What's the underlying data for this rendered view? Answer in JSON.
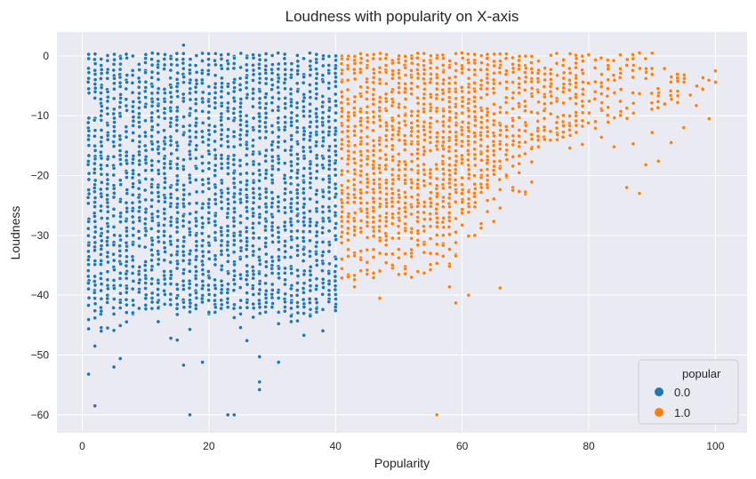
{
  "chart_data": {
    "type": "scatter",
    "title": "Loudness with popularity on X-axis",
    "xlabel": "Popularity",
    "ylabel": "Loudness",
    "xlim": [
      -4,
      105
    ],
    "ylim": [
      -63,
      4
    ],
    "xticks": [
      0,
      20,
      40,
      60,
      80,
      100
    ],
    "yticks": [
      0,
      -10,
      -20,
      -30,
      -40,
      -50,
      -60
    ],
    "grid": true,
    "legend": {
      "title": "popular",
      "placement": "lower-right",
      "entries": [
        "0.0",
        "1.0"
      ]
    },
    "colors": {
      "background": "#eaeaf2",
      "grid": "#ffffff",
      "series_0": "#1f77b4",
      "series_1": "#ff7f0e"
    },
    "series": [
      {
        "name": "0.0",
        "x_range": [
          1,
          40
        ],
        "y_top": 0.5,
        "dense_floor": -42,
        "outliers": [
          [
            1,
            -53.2
          ],
          [
            2,
            -58.5
          ],
          [
            2,
            -48.5
          ],
          [
            3,
            -46
          ],
          [
            5,
            -52
          ],
          [
            6,
            -50.6
          ],
          [
            14,
            -47.2
          ],
          [
            15,
            -47.5
          ],
          [
            16,
            -51.7
          ],
          [
            17,
            -60
          ],
          [
            19,
            -51.2
          ],
          [
            23,
            -60
          ],
          [
            24,
            -60
          ],
          [
            26,
            -47.6
          ],
          [
            28,
            -54.5
          ],
          [
            28,
            -55.8
          ],
          [
            28,
            -50.3
          ],
          [
            31,
            -51.2
          ],
          [
            34,
            -44.3
          ],
          [
            35,
            -46.7
          ],
          [
            16,
            1.8
          ],
          [
            40,
            -42
          ]
        ]
      },
      {
        "name": "1.0",
        "x_range": [
          41,
          100
        ],
        "y_top": 0.5,
        "outliers": [
          [
            56,
            -60
          ],
          [
            59,
            -41.3
          ],
          [
            61,
            -40
          ],
          [
            58,
            -38.6
          ],
          [
            66,
            -38.8
          ],
          [
            43,
            -38.6
          ],
          [
            47,
            -40.5
          ],
          [
            52,
            -37
          ],
          [
            54,
            -36.3
          ],
          [
            86,
            -22
          ],
          [
            88,
            -23
          ],
          [
            89,
            -18.2
          ],
          [
            91,
            -17.6
          ],
          [
            93,
            -14.5
          ],
          [
            95,
            -12
          ],
          [
            97,
            -8.3
          ],
          [
            98,
            -5.6
          ],
          [
            99,
            -10.5
          ],
          [
            100,
            -2.5
          ],
          [
            90,
            -12.8
          ],
          [
            84,
            -15.2
          ],
          [
            82,
            -13.6
          ],
          [
            87,
            -14.7
          ],
          [
            79,
            -14.8
          ],
          [
            75,
            -14
          ],
          [
            77,
            -15.4
          ]
        ]
      }
    ]
  }
}
